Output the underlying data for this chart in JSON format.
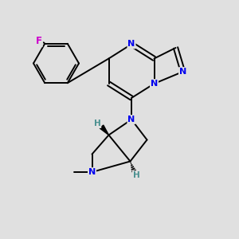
{
  "bg_color": "#e0e0e0",
  "atom_colors": {
    "N": "#0000ee",
    "F": "#cc00cc",
    "H": "#4a9090",
    "C": "#000000"
  },
  "bond_color": "#000000"
}
